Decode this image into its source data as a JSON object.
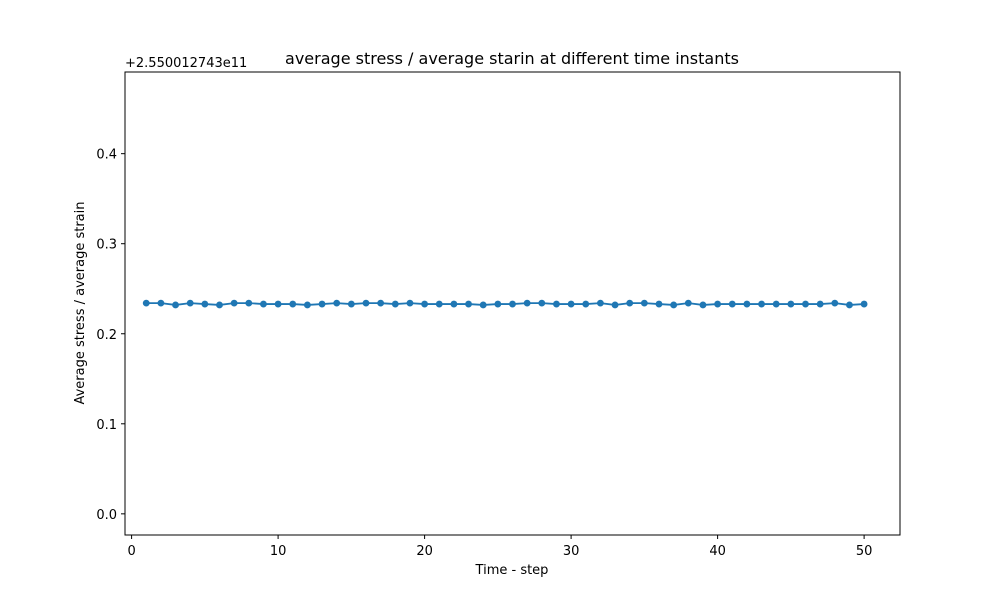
{
  "chart_data": {
    "type": "line",
    "title": "average stress / average starin  at different time instants",
    "xlabel": "Time - step",
    "ylabel": "Average stress / average strain",
    "y_offset_label": "+2.550012743e11",
    "xlim": [
      -0.45,
      52.45
    ],
    "ylim": [
      -0.0235,
      0.4907
    ],
    "x_ticks": [
      0,
      10,
      20,
      30,
      40,
      50
    ],
    "y_ticks": [
      0.0,
      0.1,
      0.2,
      0.3,
      0.4
    ],
    "y_tick_labels": [
      "0.0",
      "0.1",
      "0.2",
      "0.3",
      "0.4"
    ],
    "grid": false,
    "series": [
      {
        "color": "#1f77b4",
        "marker": "circle",
        "x": [
          1,
          2,
          3,
          4,
          5,
          6,
          7,
          8,
          9,
          10,
          11,
          12,
          13,
          14,
          15,
          16,
          17,
          18,
          19,
          20,
          21,
          22,
          23,
          24,
          25,
          26,
          27,
          28,
          29,
          30,
          31,
          32,
          33,
          34,
          35,
          36,
          37,
          38,
          39,
          40,
          41,
          42,
          43,
          44,
          45,
          46,
          47,
          48,
          49,
          50
        ],
        "y": [
          0.234,
          0.234,
          0.232,
          0.234,
          0.233,
          0.232,
          0.234,
          0.234,
          0.233,
          0.233,
          0.233,
          0.232,
          0.233,
          0.234,
          0.233,
          0.234,
          0.234,
          0.233,
          0.234,
          0.233,
          0.233,
          0.233,
          0.233,
          0.232,
          0.233,
          0.233,
          0.234,
          0.234,
          0.233,
          0.233,
          0.233,
          0.234,
          0.232,
          0.234,
          0.234,
          0.233,
          0.232,
          0.234,
          0.232,
          0.233,
          0.233,
          0.233,
          0.233,
          0.233,
          0.233,
          0.233,
          0.233,
          0.234,
          0.232,
          0.233
        ]
      }
    ]
  }
}
